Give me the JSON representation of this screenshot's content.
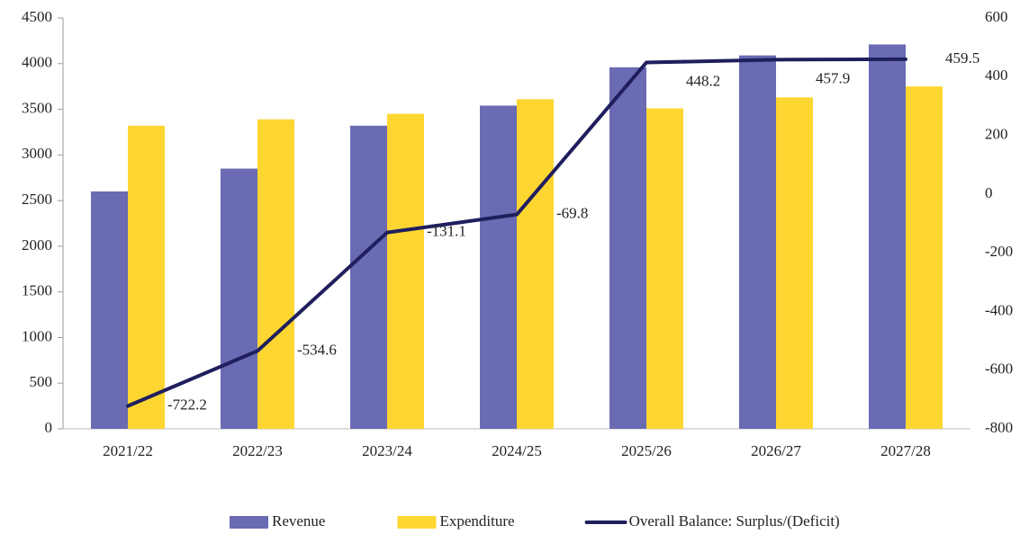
{
  "chart_data": {
    "type": "bar_line",
    "categories": [
      "2021/22",
      "2022/23",
      "2023/24",
      "2024/25",
      "2025/26",
      "2026/27",
      "2027/28"
    ],
    "series": [
      {
        "name": "Revenue",
        "type": "bar",
        "color": "#6a6bb3",
        "values": [
          2600,
          2850,
          3320,
          3540,
          3960,
          4090,
          4210
        ]
      },
      {
        "name": "Expenditure",
        "type": "bar",
        "color": "#fdd631",
        "values": [
          3320,
          3390,
          3450,
          3610,
          3510,
          3630,
          3750
        ]
      },
      {
        "name": "Overall Balance: Surplus/(Deficit)",
        "type": "line",
        "axis": "y2",
        "color": "#1f1f5e",
        "values": [
          -722.2,
          -534.6,
          -131.1,
          -69.8,
          448.2,
          457.9,
          459.5
        ]
      }
    ],
    "ylim": [
      0,
      4500
    ],
    "yticks": [
      0,
      500,
      1000,
      1500,
      2000,
      2500,
      3000,
      3500,
      4000,
      4500
    ],
    "y2lim": [
      -800,
      600
    ],
    "y2ticks": [
      -800,
      -600,
      -400,
      -200,
      0,
      200,
      400,
      600
    ],
    "legend": "bottom"
  }
}
